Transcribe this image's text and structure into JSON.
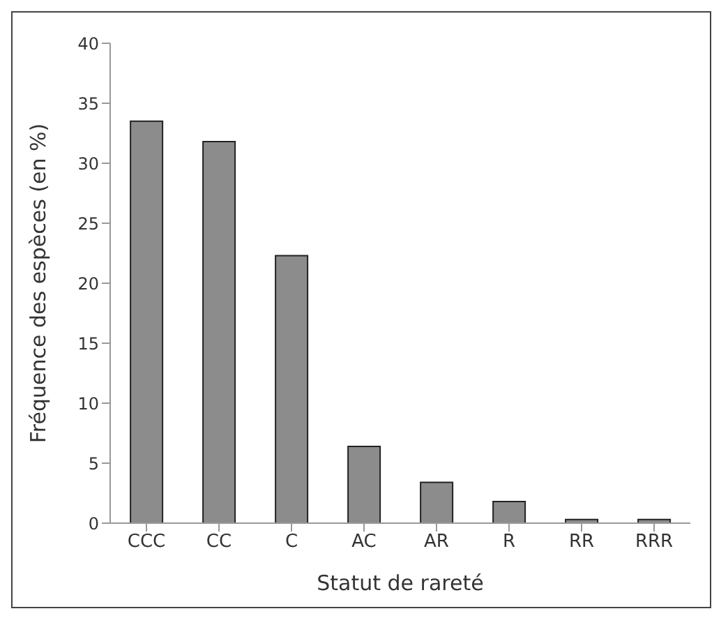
{
  "chart_data": {
    "type": "bar",
    "xlabel": "Statut de rareté",
    "ylabel": "Fréquence des espèces (en %)",
    "categories": [
      "CCC",
      "CC",
      "C",
      "AC",
      "AR",
      "R",
      "RR",
      "RRR"
    ],
    "values": [
      33.5,
      31.8,
      22.3,
      6.4,
      3.4,
      1.8,
      0.3,
      0.3
    ],
    "color": "#8c8c8c",
    "ylim": [
      0,
      40
    ],
    "yticks": [
      0,
      5,
      10,
      15,
      20,
      25,
      30,
      35,
      40
    ],
    "grid": false,
    "legend": false
  }
}
